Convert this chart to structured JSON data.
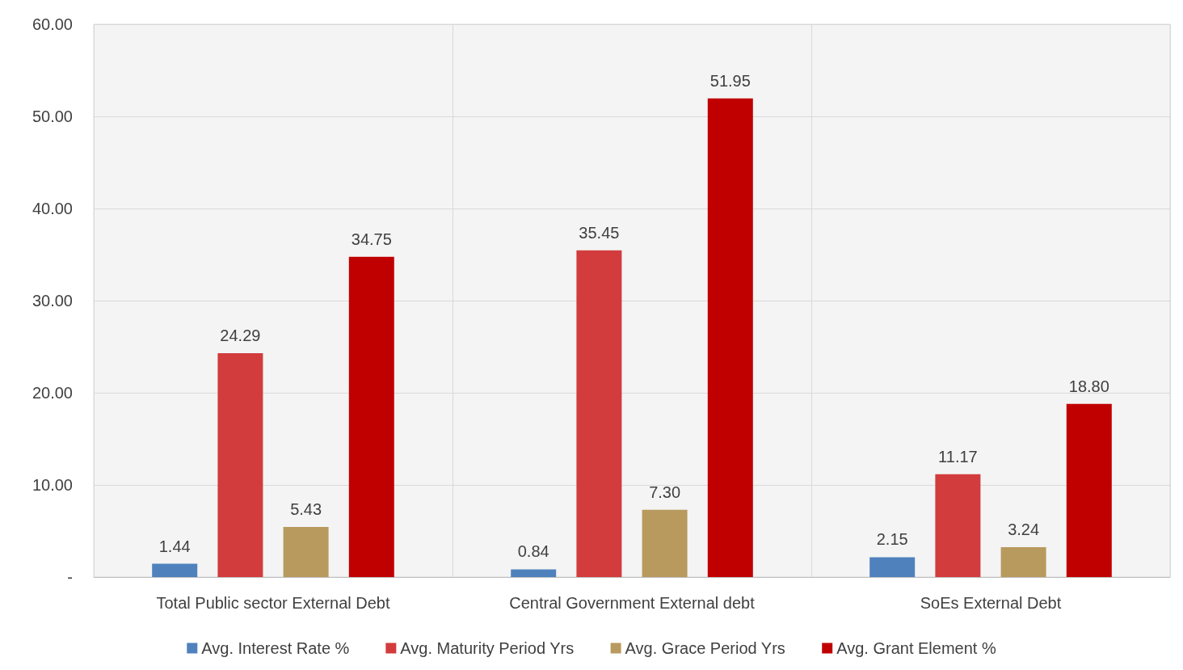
{
  "chart_data": {
    "type": "bar",
    "categories": [
      "Total Public sector External Debt",
      "Central Government External debt",
      "SoEs External Debt"
    ],
    "series": [
      {
        "name": "Avg. Interest Rate %",
        "color": "#4f81bd",
        "values": [
          1.44,
          0.84,
          2.15
        ],
        "value_labels": [
          "1.44",
          "0.84",
          "2.15"
        ]
      },
      {
        "name": "Avg. Maturity Period Yrs",
        "color": "#d23c3c",
        "values": [
          24.29,
          35.45,
          11.17
        ],
        "value_labels": [
          "24.29",
          "35.45",
          "11.17"
        ]
      },
      {
        "name": "Avg. Grace Period Yrs",
        "color": "#b89a5e",
        "values": [
          5.43,
          7.3,
          3.24
        ],
        "value_labels": [
          "5.43",
          "7.30",
          "3.24"
        ]
      },
      {
        "name": "Avg. Grant Element %",
        "color": "#c00000",
        "values": [
          34.75,
          51.95,
          18.8
        ],
        "value_labels": [
          "34.75",
          "51.95",
          "18.80"
        ]
      }
    ],
    "ylim": [
      0,
      60
    ],
    "yticks": [
      {
        "value": 0,
        "label": "-"
      },
      {
        "value": 10,
        "label": "10.00"
      },
      {
        "value": 20,
        "label": "20.00"
      },
      {
        "value": 30,
        "label": "30.00"
      },
      {
        "value": 40,
        "label": "40.00"
      },
      {
        "value": 50,
        "label": "50.00"
      },
      {
        "value": 60,
        "label": "60.00"
      }
    ],
    "grid": true,
    "legend": "bottom"
  }
}
